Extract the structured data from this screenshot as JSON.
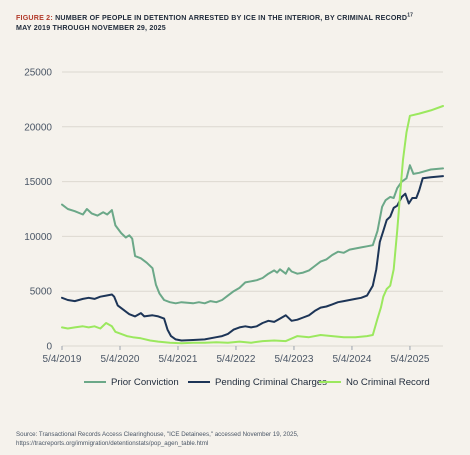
{
  "figure": {
    "label": "FIGURE 2:",
    "title": "NUMBER OF PEOPLE IN DETENTION ARRESTED BY ICE IN THE INTERIOR, BY CRIMINAL RECORD",
    "footnote_mark": "17",
    "subtitle": "MAY 2019 THROUGH NOVEMBER 29, 2025"
  },
  "source": "Source: Transactional Records Access Clearinghouse, \"ICE Detainees,\" accessed November 19, 2025, https://tracreports.org/immigration/detentionstats/pop_agen_table.html",
  "chart_data": {
    "type": "line",
    "grid": "horizontal",
    "legend_position": "bottom",
    "y_ticks": [
      0,
      5000,
      10000,
      15000,
      20000,
      25000
    ],
    "ylim": [
      0,
      25000
    ],
    "x_tick_labels": [
      "5/4/2019",
      "5/4/2020",
      "5/4/2021",
      "5/4/2022",
      "5/4/2023",
      "5/4/2024",
      "5/4/2025"
    ],
    "x_ticks": [
      2019.34,
      2020.34,
      2021.34,
      2022.34,
      2023.34,
      2024.34,
      2025.34
    ],
    "xlim": [
      2019.34,
      2025.91
    ],
    "series": [
      {
        "name": "Prior Conviction",
        "color": "#6ba888",
        "points": [
          [
            2019.34,
            12900
          ],
          [
            2019.44,
            12500
          ],
          [
            2019.56,
            12300
          ],
          [
            2019.7,
            12000
          ],
          [
            2019.77,
            12500
          ],
          [
            2019.85,
            12100
          ],
          [
            2019.95,
            11900
          ],
          [
            2020.05,
            12200
          ],
          [
            2020.12,
            12000
          ],
          [
            2020.2,
            12400
          ],
          [
            2020.26,
            11000
          ],
          [
            2020.36,
            10300
          ],
          [
            2020.44,
            9900
          ],
          [
            2020.5,
            10100
          ],
          [
            2020.55,
            9800
          ],
          [
            2020.6,
            8200
          ],
          [
            2020.7,
            8000
          ],
          [
            2020.8,
            7600
          ],
          [
            2020.9,
            7100
          ],
          [
            2020.96,
            5600
          ],
          [
            2021.02,
            4800
          ],
          [
            2021.1,
            4200
          ],
          [
            2021.2,
            4000
          ],
          [
            2021.3,
            3900
          ],
          [
            2021.4,
            4000
          ],
          [
            2021.5,
            3950
          ],
          [
            2021.6,
            3900
          ],
          [
            2021.7,
            4000
          ],
          [
            2021.8,
            3900
          ],
          [
            2021.9,
            4100
          ],
          [
            2022.0,
            4000
          ],
          [
            2022.1,
            4200
          ],
          [
            2022.2,
            4600
          ],
          [
            2022.3,
            5000
          ],
          [
            2022.4,
            5300
          ],
          [
            2022.5,
            5800
          ],
          [
            2022.6,
            5900
          ],
          [
            2022.7,
            6000
          ],
          [
            2022.8,
            6200
          ],
          [
            2022.9,
            6600
          ],
          [
            2023.0,
            6900
          ],
          [
            2023.05,
            6700
          ],
          [
            2023.1,
            7000
          ],
          [
            2023.2,
            6600
          ],
          [
            2023.25,
            7100
          ],
          [
            2023.3,
            6800
          ],
          [
            2023.4,
            6600
          ],
          [
            2023.5,
            6700
          ],
          [
            2023.6,
            6900
          ],
          [
            2023.7,
            7300
          ],
          [
            2023.8,
            7700
          ],
          [
            2023.9,
            7900
          ],
          [
            2024.0,
            8300
          ],
          [
            2024.1,
            8600
          ],
          [
            2024.2,
            8500
          ],
          [
            2024.3,
            8800
          ],
          [
            2024.4,
            8900
          ],
          [
            2024.5,
            9000
          ],
          [
            2024.6,
            9100
          ],
          [
            2024.7,
            9200
          ],
          [
            2024.78,
            10500
          ],
          [
            2024.86,
            12700
          ],
          [
            2024.92,
            13300
          ],
          [
            2025.0,
            13600
          ],
          [
            2025.06,
            13500
          ],
          [
            2025.12,
            14400
          ],
          [
            2025.2,
            15000
          ],
          [
            2025.28,
            15300
          ],
          [
            2025.34,
            16500
          ],
          [
            2025.4,
            15700
          ],
          [
            2025.5,
            15800
          ],
          [
            2025.7,
            16100
          ],
          [
            2025.91,
            16200
          ]
        ]
      },
      {
        "name": "Pending Criminal Charges",
        "color": "#1d3557",
        "points": [
          [
            2019.34,
            4400
          ],
          [
            2019.44,
            4200
          ],
          [
            2019.56,
            4100
          ],
          [
            2019.7,
            4300
          ],
          [
            2019.8,
            4400
          ],
          [
            2019.9,
            4300
          ],
          [
            2020.0,
            4500
          ],
          [
            2020.1,
            4600
          ],
          [
            2020.2,
            4700
          ],
          [
            2020.24,
            4500
          ],
          [
            2020.3,
            3700
          ],
          [
            2020.4,
            3300
          ],
          [
            2020.5,
            2900
          ],
          [
            2020.6,
            2700
          ],
          [
            2020.7,
            3000
          ],
          [
            2020.76,
            2700
          ],
          [
            2020.9,
            2800
          ],
          [
            2021.0,
            2700
          ],
          [
            2021.1,
            2500
          ],
          [
            2021.16,
            1500
          ],
          [
            2021.22,
            900
          ],
          [
            2021.3,
            600
          ],
          [
            2021.4,
            500
          ],
          [
            2021.6,
            550
          ],
          [
            2021.8,
            600
          ],
          [
            2022.0,
            800
          ],
          [
            2022.1,
            900
          ],
          [
            2022.2,
            1100
          ],
          [
            2022.3,
            1500
          ],
          [
            2022.4,
            1700
          ],
          [
            2022.5,
            1800
          ],
          [
            2022.6,
            1700
          ],
          [
            2022.7,
            1800
          ],
          [
            2022.8,
            2100
          ],
          [
            2022.9,
            2300
          ],
          [
            2023.0,
            2200
          ],
          [
            2023.1,
            2500
          ],
          [
            2023.2,
            2800
          ],
          [
            2023.3,
            2300
          ],
          [
            2023.4,
            2400
          ],
          [
            2023.5,
            2600
          ],
          [
            2023.6,
            2800
          ],
          [
            2023.7,
            3200
          ],
          [
            2023.8,
            3500
          ],
          [
            2023.9,
            3600
          ],
          [
            2024.0,
            3800
          ],
          [
            2024.1,
            4000
          ],
          [
            2024.2,
            4100
          ],
          [
            2024.3,
            4200
          ],
          [
            2024.4,
            4300
          ],
          [
            2024.5,
            4400
          ],
          [
            2024.6,
            4600
          ],
          [
            2024.7,
            5500
          ],
          [
            2024.76,
            7000
          ],
          [
            2024.82,
            9500
          ],
          [
            2024.88,
            10500
          ],
          [
            2024.94,
            11500
          ],
          [
            2025.0,
            11800
          ],
          [
            2025.06,
            12600
          ],
          [
            2025.12,
            12800
          ],
          [
            2025.2,
            13600
          ],
          [
            2025.26,
            13900
          ],
          [
            2025.32,
            13000
          ],
          [
            2025.38,
            13500
          ],
          [
            2025.45,
            13500
          ],
          [
            2025.5,
            14200
          ],
          [
            2025.56,
            15300
          ],
          [
            2025.7,
            15400
          ],
          [
            2025.91,
            15500
          ]
        ]
      },
      {
        "name": "No Criminal Record",
        "color": "#9be85e",
        "points": [
          [
            2019.34,
            1700
          ],
          [
            2019.44,
            1600
          ],
          [
            2019.56,
            1700
          ],
          [
            2019.7,
            1800
          ],
          [
            2019.8,
            1700
          ],
          [
            2019.9,
            1800
          ],
          [
            2020.0,
            1600
          ],
          [
            2020.1,
            2100
          ],
          [
            2020.2,
            1800
          ],
          [
            2020.26,
            1300
          ],
          [
            2020.36,
            1100
          ],
          [
            2020.46,
            900
          ],
          [
            2020.56,
            800
          ],
          [
            2020.7,
            700
          ],
          [
            2020.86,
            500
          ],
          [
            2021.0,
            400
          ],
          [
            2021.2,
            300
          ],
          [
            2021.4,
            250
          ],
          [
            2021.6,
            300
          ],
          [
            2021.8,
            300
          ],
          [
            2022.0,
            350
          ],
          [
            2022.2,
            300
          ],
          [
            2022.4,
            400
          ],
          [
            2022.6,
            300
          ],
          [
            2022.8,
            450
          ],
          [
            2023.0,
            500
          ],
          [
            2023.2,
            450
          ],
          [
            2023.4,
            900
          ],
          [
            2023.6,
            800
          ],
          [
            2023.8,
            1000
          ],
          [
            2024.0,
            900
          ],
          [
            2024.2,
            800
          ],
          [
            2024.4,
            800
          ],
          [
            2024.6,
            900
          ],
          [
            2024.7,
            1000
          ],
          [
            2024.78,
            2500
          ],
          [
            2024.84,
            3500
          ],
          [
            2024.88,
            4500
          ],
          [
            2024.94,
            5200
          ],
          [
            2025.0,
            5500
          ],
          [
            2025.06,
            7000
          ],
          [
            2025.12,
            10500
          ],
          [
            2025.18,
            14500
          ],
          [
            2025.22,
            17000
          ],
          [
            2025.28,
            19500
          ],
          [
            2025.34,
            21000
          ],
          [
            2025.5,
            21200
          ],
          [
            2025.7,
            21500
          ],
          [
            2025.91,
            21900
          ]
        ]
      }
    ]
  }
}
